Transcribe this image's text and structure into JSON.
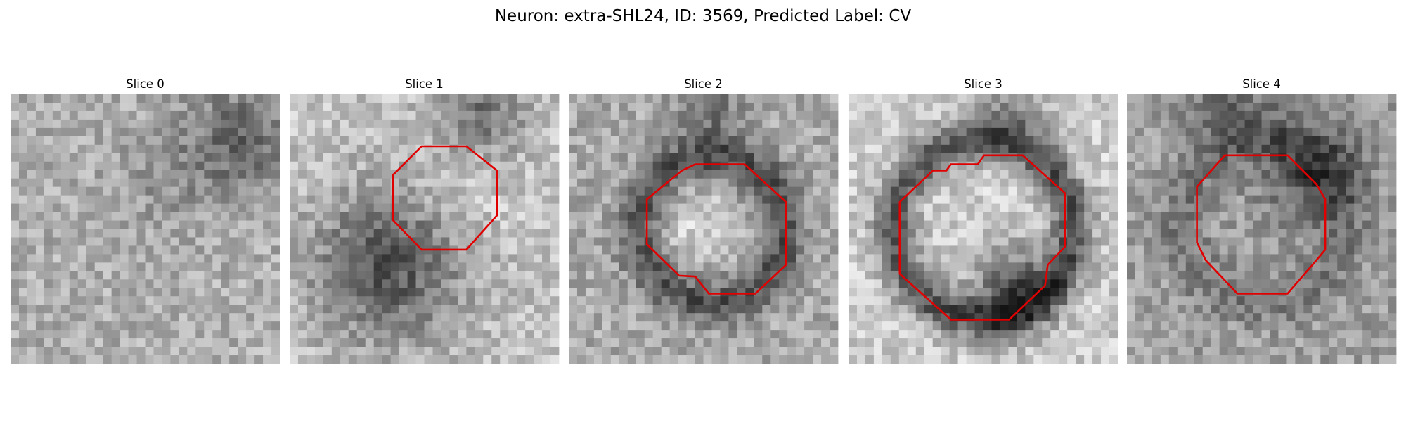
{
  "title": "Neuron: extra-SHL24, ID: 3569, Predicted Label: CV",
  "panels": [
    {
      "title": "Slice 0"
    },
    {
      "title": "Slice 1"
    },
    {
      "title": "Slice 2"
    },
    {
      "title": "Slice 3"
    },
    {
      "title": "Slice 4"
    }
  ]
}
